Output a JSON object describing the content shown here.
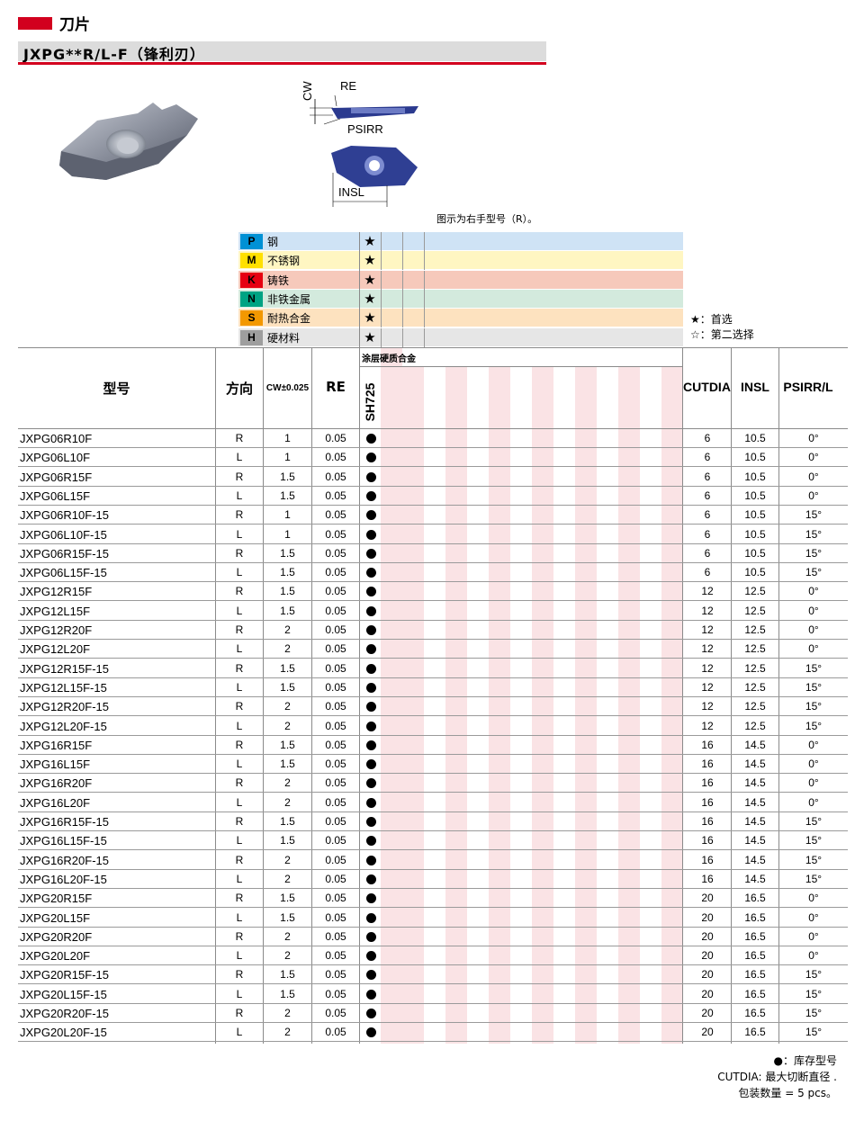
{
  "section_title": "刀片",
  "model_title": "JXPG**R/L-F（锋利刃）",
  "diagram_labels": {
    "cw": "CW",
    "re": "RE",
    "psirr": "PSIRR",
    "insl": "INSL"
  },
  "caption": "图示为右手型号（R）。",
  "colors": {
    "accent": "#d2001e"
  },
  "materials": [
    {
      "code": "P",
      "name": "钢",
      "badge": "#0091d5",
      "badge_text": "#000000",
      "row": "#cfe3f5",
      "rating": "★"
    },
    {
      "code": "M",
      "name": "不锈钢",
      "badge": "#ffe000",
      "badge_text": "#000000",
      "row": "#fff6c2",
      "rating": "★"
    },
    {
      "code": "K",
      "name": "铸铁",
      "badge": "#e60012",
      "badge_text": "#000000",
      "row": "#f6c9bb",
      "rating": "★"
    },
    {
      "code": "N",
      "name": "非铁金属",
      "badge": "#00a383",
      "badge_text": "#000000",
      "row": "#d3eadd",
      "rating": "★"
    },
    {
      "code": "S",
      "name": "耐热合金",
      "badge": "#f39800",
      "badge_text": "#000000",
      "row": "#fde2bf",
      "rating": "★"
    },
    {
      "code": "H",
      "name": "硬材料",
      "badge": "#9e9e9e",
      "badge_text": "#000000",
      "row": "#e6e6e6",
      "rating": "★"
    }
  ],
  "legend": {
    "preferred": "★：首选",
    "second": "☆：第二选择"
  },
  "table": {
    "headers": {
      "model": "型号",
      "direction": "方向",
      "cw": "CW±0.025",
      "re": "RE",
      "cutdia": "CUTDIA",
      "insl": "INSL",
      "psirr": "PSIRR/L"
    },
    "coating_header": "涂层硬质合金",
    "grade": "SH725",
    "stock_symbol": "●",
    "rows": [
      [
        "JXPG06R10F",
        "R",
        "1",
        "0.05",
        "6",
        "10.5",
        "0°"
      ],
      [
        "JXPG06L10F",
        "L",
        "1",
        "0.05",
        "6",
        "10.5",
        "0°"
      ],
      [
        "JXPG06R15F",
        "R",
        "1.5",
        "0.05",
        "6",
        "10.5",
        "0°"
      ],
      [
        "JXPG06L15F",
        "L",
        "1.5",
        "0.05",
        "6",
        "10.5",
        "0°"
      ],
      [
        "JXPG06R10F-15",
        "R",
        "1",
        "0.05",
        "6",
        "10.5",
        "15°"
      ],
      [
        "JXPG06L10F-15",
        "L",
        "1",
        "0.05",
        "6",
        "10.5",
        "15°"
      ],
      [
        "JXPG06R15F-15",
        "R",
        "1.5",
        "0.05",
        "6",
        "10.5",
        "15°"
      ],
      [
        "JXPG06L15F-15",
        "L",
        "1.5",
        "0.05",
        "6",
        "10.5",
        "15°"
      ],
      [
        "JXPG12R15F",
        "R",
        "1.5",
        "0.05",
        "12",
        "12.5",
        "0°"
      ],
      [
        "JXPG12L15F",
        "L",
        "1.5",
        "0.05",
        "12",
        "12.5",
        "0°"
      ],
      [
        "JXPG12R20F",
        "R",
        "2",
        "0.05",
        "12",
        "12.5",
        "0°"
      ],
      [
        "JXPG12L20F",
        "L",
        "2",
        "0.05",
        "12",
        "12.5",
        "0°"
      ],
      [
        "JXPG12R15F-15",
        "R",
        "1.5",
        "0.05",
        "12",
        "12.5",
        "15°"
      ],
      [
        "JXPG12L15F-15",
        "L",
        "1.5",
        "0.05",
        "12",
        "12.5",
        "15°"
      ],
      [
        "JXPG12R20F-15",
        "R",
        "2",
        "0.05",
        "12",
        "12.5",
        "15°"
      ],
      [
        "JXPG12L20F-15",
        "L",
        "2",
        "0.05",
        "12",
        "12.5",
        "15°"
      ],
      [
        "JXPG16R15F",
        "R",
        "1.5",
        "0.05",
        "16",
        "14.5",
        "0°"
      ],
      [
        "JXPG16L15F",
        "L",
        "1.5",
        "0.05",
        "16",
        "14.5",
        "0°"
      ],
      [
        "JXPG16R20F",
        "R",
        "2",
        "0.05",
        "16",
        "14.5",
        "0°"
      ],
      [
        "JXPG16L20F",
        "L",
        "2",
        "0.05",
        "16",
        "14.5",
        "0°"
      ],
      [
        "JXPG16R15F-15",
        "R",
        "1.5",
        "0.05",
        "16",
        "14.5",
        "15°"
      ],
      [
        "JXPG16L15F-15",
        "L",
        "1.5",
        "0.05",
        "16",
        "14.5",
        "15°"
      ],
      [
        "JXPG16R20F-15",
        "R",
        "2",
        "0.05",
        "16",
        "14.5",
        "15°"
      ],
      [
        "JXPG16L20F-15",
        "L",
        "2",
        "0.05",
        "16",
        "14.5",
        "15°"
      ],
      [
        "JXPG20R15F",
        "R",
        "1.5",
        "0.05",
        "20",
        "16.5",
        "0°"
      ],
      [
        "JXPG20L15F",
        "L",
        "1.5",
        "0.05",
        "20",
        "16.5",
        "0°"
      ],
      [
        "JXPG20R20F",
        "R",
        "2",
        "0.05",
        "20",
        "16.5",
        "0°"
      ],
      [
        "JXPG20L20F",
        "L",
        "2",
        "0.05",
        "20",
        "16.5",
        "0°"
      ],
      [
        "JXPG20R15F-15",
        "R",
        "1.5",
        "0.05",
        "20",
        "16.5",
        "15°"
      ],
      [
        "JXPG20L15F-15",
        "L",
        "1.5",
        "0.05",
        "20",
        "16.5",
        "15°"
      ],
      [
        "JXPG20R20F-15",
        "R",
        "2",
        "0.05",
        "20",
        "16.5",
        "15°"
      ],
      [
        "JXPG20L20F-15",
        "L",
        "2",
        "0.05",
        "20",
        "16.5",
        "15°"
      ]
    ]
  },
  "footnotes": [
    "●：库存型号",
    "CUTDIA: 最大切断直径 .",
    "包装数量 = 5 pcs。"
  ]
}
